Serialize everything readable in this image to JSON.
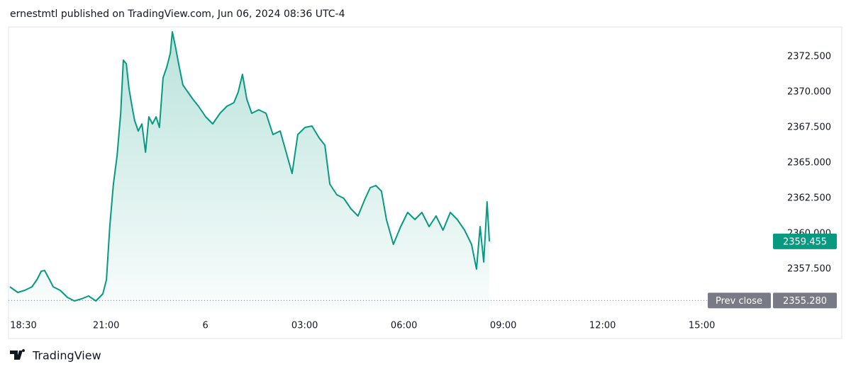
{
  "header": "ernestmtl published on TradingView.com, Jun 06, 2024 08:36 UTC-4",
  "footer": {
    "brand": "TradingView"
  },
  "chart_data": {
    "type": "area",
    "x": [
      18.09,
      18.33,
      18.54,
      18.76,
      18.91,
      19.04,
      19.14,
      19.29,
      19.4,
      19.61,
      19.83,
      20.04,
      20.26,
      20.47,
      20.69,
      20.9,
      21.01,
      21.11,
      21.22,
      21.33,
      21.44,
      21.52,
      21.61,
      21.69,
      21.78,
      21.86,
      21.97,
      22.08,
      22.19,
      22.29,
      22.4,
      22.51,
      22.61,
      22.72,
      22.83,
      22.94,
      23.0,
      23.09,
      23.19,
      23.32,
      23.47,
      23.62,
      23.79,
      24.01,
      24.22,
      24.44,
      24.65,
      24.86,
      24.99,
      25.12,
      25.25,
      25.4,
      25.61,
      25.83,
      26.04,
      26.26,
      26.47,
      26.62,
      26.79,
      27.01,
      27.22,
      27.44,
      27.61,
      27.76,
      27.97,
      28.18,
      28.4,
      28.61,
      28.83,
      28.98,
      29.15,
      29.32,
      29.47,
      29.68,
      29.9,
      30.11,
      30.33,
      30.54,
      30.76,
      30.97,
      31.18,
      31.4,
      31.61,
      31.83,
      32.04,
      32.19,
      32.3,
      32.41,
      32.51,
      32.58
    ],
    "series": [
      {
        "color": "#089981",
        "values": [
          2356.25,
          2355.85,
          2356.0,
          2356.25,
          2356.75,
          2357.35,
          2357.4,
          2356.75,
          2356.25,
          2356.0,
          2355.5,
          2355.25,
          2355.4,
          2355.6,
          2355.25,
          2355.75,
          2356.75,
          2360.5,
          2363.5,
          2365.5,
          2368.5,
          2372.25,
          2372.0,
          2370.25,
          2369.0,
          2368.0,
          2367.25,
          2367.75,
          2365.75,
          2368.25,
          2367.75,
          2368.25,
          2367.5,
          2371.0,
          2371.75,
          2372.75,
          2374.25,
          2373.25,
          2372.0,
          2370.5,
          2370.0,
          2369.5,
          2369.0,
          2368.25,
          2367.75,
          2368.5,
          2369.0,
          2369.25,
          2370.0,
          2371.25,
          2369.5,
          2368.5,
          2368.75,
          2368.5,
          2367.0,
          2367.25,
          2365.5,
          2364.25,
          2367.0,
          2367.5,
          2367.6,
          2366.75,
          2366.25,
          2363.5,
          2362.75,
          2362.5,
          2361.75,
          2361.25,
          2362.5,
          2363.25,
          2363.4,
          2363.0,
          2361.0,
          2359.25,
          2360.5,
          2361.5,
          2361.0,
          2361.5,
          2360.5,
          2361.25,
          2360.25,
          2361.5,
          2361.0,
          2360.25,
          2359.25,
          2357.5,
          2360.5,
          2358.0,
          2362.25,
          2359.455
        ]
      }
    ],
    "xlim": [
      18.05,
      41.0
    ],
    "ylim": [
      2354.5,
      2374.6
    ],
    "xticks": [
      {
        "value": 18.5,
        "label": "18:30"
      },
      {
        "value": 21,
        "label": "21:00"
      },
      {
        "value": 24,
        "label": "6"
      },
      {
        "value": 27,
        "label": "03:00"
      },
      {
        "value": 30,
        "label": "06:00"
      },
      {
        "value": 33,
        "label": "09:00"
      },
      {
        "value": 36,
        "label": "12:00"
      },
      {
        "value": 39,
        "label": "15:00"
      }
    ],
    "yticks": [
      {
        "value": 2357.5,
        "label": "2357.500"
      },
      {
        "value": 2360,
        "label": "2360.000"
      },
      {
        "value": 2362.5,
        "label": "2362.500"
      },
      {
        "value": 2365,
        "label": "2365.000"
      },
      {
        "value": 2367.5,
        "label": "2367.500"
      },
      {
        "value": 2370,
        "label": "2370.000"
      },
      {
        "value": 2372.5,
        "label": "2372.500"
      }
    ],
    "reference_line": {
      "name": "Prev close",
      "value": 2355.28,
      "value_label": "2355.280",
      "color": "#787b86"
    }
  }
}
